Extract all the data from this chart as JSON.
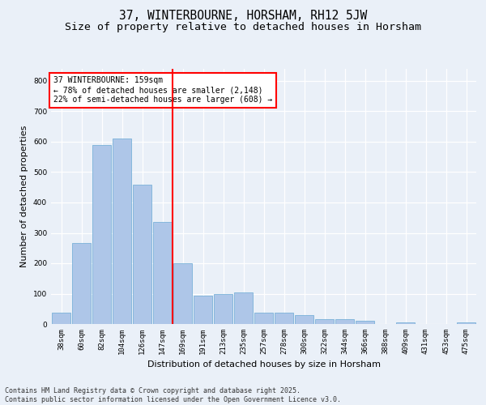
{
  "title": "37, WINTERBOURNE, HORSHAM, RH12 5JW",
  "subtitle": "Size of property relative to detached houses in Horsham",
  "xlabel": "Distribution of detached houses by size in Horsham",
  "ylabel": "Number of detached properties",
  "bins": [
    "38sqm",
    "60sqm",
    "82sqm",
    "104sqm",
    "126sqm",
    "147sqm",
    "169sqm",
    "191sqm",
    "213sqm",
    "235sqm",
    "257sqm",
    "278sqm",
    "300sqm",
    "322sqm",
    "344sqm",
    "366sqm",
    "388sqm",
    "409sqm",
    "431sqm",
    "453sqm",
    "475sqm"
  ],
  "values": [
    38,
    268,
    588,
    610,
    458,
    335,
    200,
    93,
    100,
    105,
    38,
    38,
    30,
    15,
    15,
    10,
    0,
    5,
    0,
    0,
    5
  ],
  "bar_color": "#aec6e8",
  "bar_edge_color": "#6aaad4",
  "vline_x": 5.5,
  "vline_color": "red",
  "annotation_text": "37 WINTERBOURNE: 159sqm\n← 78% of detached houses are smaller (2,148)\n22% of semi-detached houses are larger (608) →",
  "annotation_box_color": "white",
  "annotation_box_edge": "red",
  "ylim": [
    0,
    840
  ],
  "yticks": [
    0,
    100,
    200,
    300,
    400,
    500,
    600,
    700,
    800
  ],
  "footer_line1": "Contains HM Land Registry data © Crown copyright and database right 2025.",
  "footer_line2": "Contains public sector information licensed under the Open Government Licence v3.0.",
  "bg_color": "#eaf0f8",
  "plot_bg_color": "#eaf0f8",
  "grid_color": "white",
  "title_fontsize": 10.5,
  "subtitle_fontsize": 9.5,
  "axis_label_fontsize": 8,
  "tick_fontsize": 6.5,
  "annotation_fontsize": 7,
  "footer_fontsize": 6
}
